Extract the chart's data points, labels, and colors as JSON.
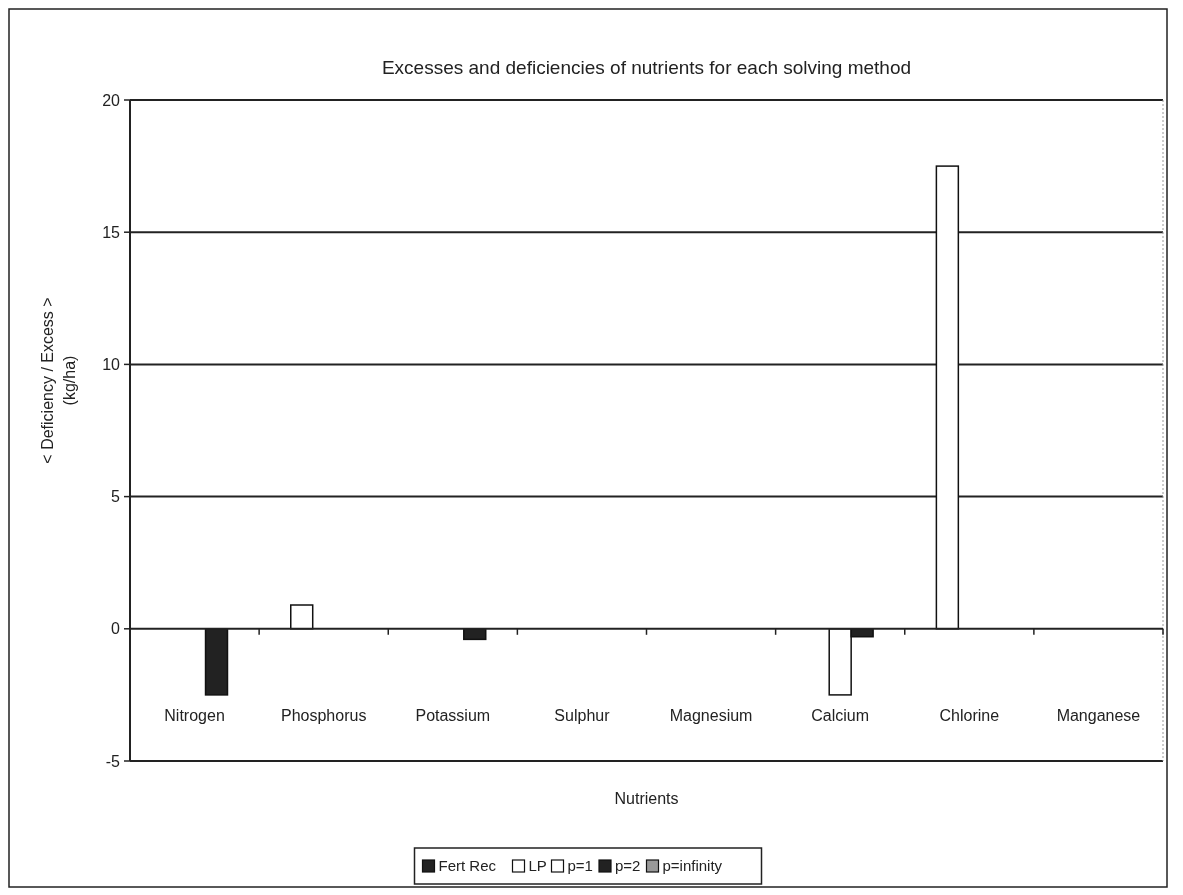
{
  "chart_data": {
    "type": "bar",
    "title": "Excesses and deficiencies of nutrients for each solving method",
    "xlabel": "Nutrients",
    "ylabel": "< Deficiency / Excess >\n(kg/ha)",
    "categories": [
      "Nitrogen",
      "Phosphorus",
      "Potassium",
      "Sulphur",
      "Magnesium",
      "Calcium",
      "Chlorine",
      "Manganese"
    ],
    "series": [
      {
        "name": "Fert Rec",
        "color": "#222222",
        "values": [
          0,
          0,
          0,
          0,
          0,
          0,
          0,
          0
        ]
      },
      {
        "name": "LP",
        "color": "#ffffff",
        "values": [
          0,
          0.9,
          0,
          0,
          0,
          0,
          17.5,
          0
        ]
      },
      {
        "name": "p=1",
        "color": "#ffffff",
        "values": [
          0,
          0,
          0,
          0,
          0,
          -2.5,
          0,
          0
        ]
      },
      {
        "name": "p=2",
        "color": "#222222",
        "values": [
          -2.5,
          0,
          -0.4,
          0,
          0,
          -0.3,
          0,
          0
        ]
      },
      {
        "name": "p=infinity",
        "color": "#999999",
        "values": [
          0,
          0,
          0,
          0,
          0,
          0,
          0,
          0
        ]
      }
    ],
    "ylim": [
      -5,
      20
    ],
    "yticks": [
      -5,
      0,
      5,
      10,
      15,
      20
    ],
    "grid": "y",
    "legend": "bottom"
  }
}
